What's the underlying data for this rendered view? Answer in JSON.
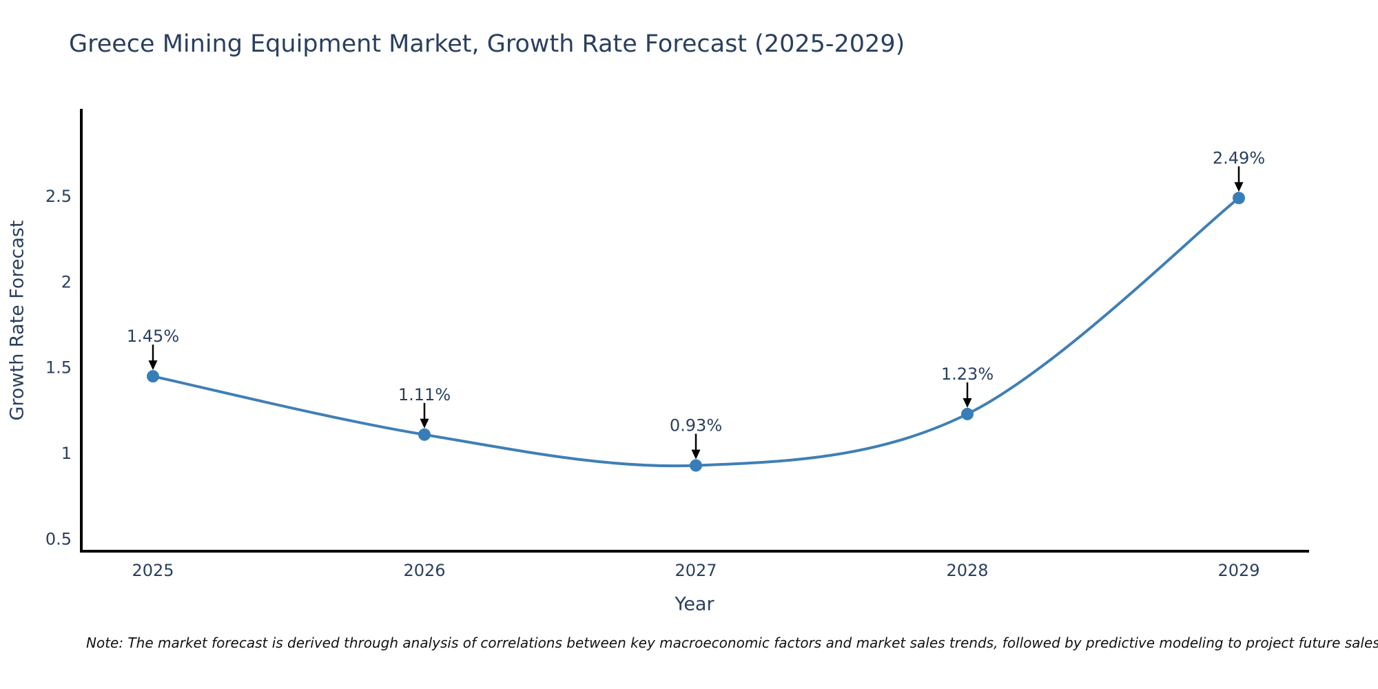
{
  "note": "Note: The market forecast is derived through analysis of correlations between key macroeconomic factors and market sales trends, followed by predictive modeling to project future sales",
  "chart_data": {
    "type": "line",
    "title": "Greece Mining Equipment Market, Growth Rate Forecast (2025-2029)",
    "xlabel": "Year",
    "ylabel": "Growth Rate Forecast",
    "categories": [
      "2025",
      "2026",
      "2027",
      "2028",
      "2029"
    ],
    "series": [
      {
        "name": "Growth Rate Forecast",
        "values": [
          1.45,
          1.11,
          0.93,
          1.23,
          2.49
        ]
      }
    ],
    "point_labels": [
      "1.45%",
      "1.11%",
      "0.93%",
      "1.23%",
      "2.49%"
    ],
    "yticks": [
      0.5,
      1,
      1.5,
      2,
      2.5
    ],
    "ylim": [
      0.43,
      3.01
    ],
    "line_shape": "spline",
    "grid": false,
    "legend_position": "none",
    "annotation_style": "label-with-down-arrow",
    "colors": {
      "line": "#3f7fb5",
      "marker": "#377eb8",
      "axis": "#000000",
      "tick_text": "#2a3f5f",
      "annotation_text": "#2a3f5f",
      "arrow": "#000000",
      "title_text": "#2a3f5f",
      "note_text": "#111111",
      "background": "#ffffff"
    }
  }
}
